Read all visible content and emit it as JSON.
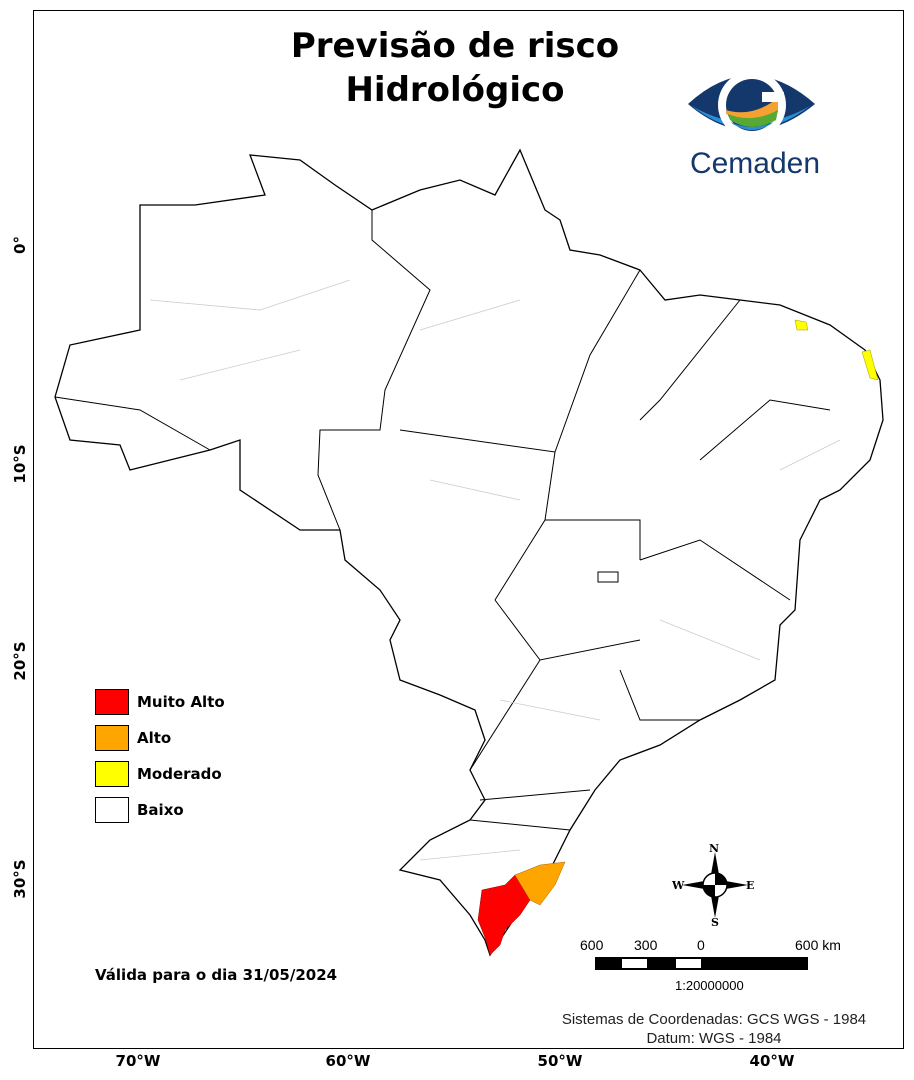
{
  "title": {
    "line1": "Previsão de risco",
    "line2": "Hidrológico"
  },
  "logo": {
    "text": "Cemaden",
    "colors": {
      "dark": "#14386b",
      "light": "#2a8fd9",
      "orange": "#f3a132",
      "green": "#58a834"
    }
  },
  "latitude_labels": [
    "0°",
    "10°S",
    "20°S",
    "30°S"
  ],
  "longitude_labels": [
    "70°W",
    "60°W",
    "50°W",
    "40°W"
  ],
  "legend": [
    {
      "label": "Muito Alto",
      "color": "#ff0000"
    },
    {
      "label": "Alto",
      "color": "#ffa500"
    },
    {
      "label": "Moderado",
      "color": "#ffff00"
    },
    {
      "label": "Baixo",
      "color": "#ffffff"
    }
  ],
  "valid_date": "Válida para o dia 31/05/2024",
  "compass": {
    "n": "N",
    "s": "S",
    "e": "E",
    "w": "W"
  },
  "scale_bar": {
    "labels": [
      "600",
      "300",
      "0",
      "600 km"
    ],
    "ratio": "1:20000000"
  },
  "crs": {
    "line1": "Sistemas de Coordenadas: GCS WGS - 1984",
    "line2": "Datum: WGS - 1984"
  }
}
